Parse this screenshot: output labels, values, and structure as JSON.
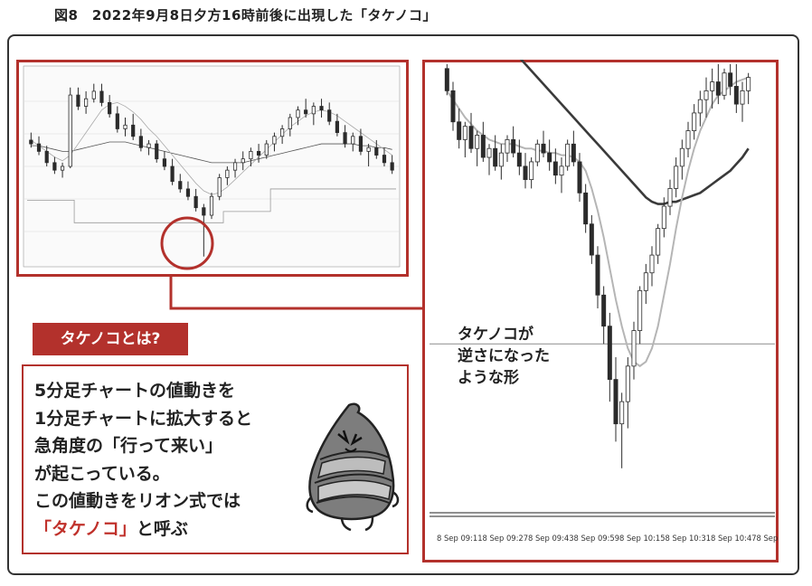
{
  "figure_title": "図8　2022年9月8日夕方16時前後に出現した「タケノコ」",
  "tag_label": "タケノコとは?",
  "explanation": {
    "line1": "5分足チャートの値動きを",
    "line2": "1分足チャートに拡大すると",
    "line3": "急角度の「行って来い」",
    "line4": "が起こっている。",
    "line5": "この値動きをリオン式では",
    "line6_highlight": "「タケノコ」",
    "line6_rest": "と呼ぶ"
  },
  "annotation": {
    "line1": "タケノコが",
    "line2": "逆さになった",
    "line3": "ような形"
  },
  "colors": {
    "accent": "#b3312c",
    "candle_up": "#ffffff",
    "candle_down": "#2b2b2b",
    "ma_light": "#b5b5b5",
    "ma_dark": "#3a3a3a"
  },
  "icons": {
    "mascot": "bamboo-shoot-mascot-icon"
  },
  "chart_data": [
    {
      "type": "candlestick",
      "name": "overview",
      "series": [
        {
          "o": 58,
          "h": 62,
          "l": 54,
          "c": 56
        },
        {
          "o": 56,
          "h": 60,
          "l": 50,
          "c": 52
        },
        {
          "o": 52,
          "h": 55,
          "l": 44,
          "c": 46
        },
        {
          "o": 46,
          "h": 49,
          "l": 40,
          "c": 42
        },
        {
          "o": 42,
          "h": 46,
          "l": 38,
          "c": 44
        },
        {
          "o": 44,
          "h": 86,
          "l": 43,
          "c": 82
        },
        {
          "o": 82,
          "h": 86,
          "l": 74,
          "c": 76
        },
        {
          "o": 76,
          "h": 84,
          "l": 72,
          "c": 80
        },
        {
          "o": 80,
          "h": 88,
          "l": 78,
          "c": 84
        },
        {
          "o": 84,
          "h": 88,
          "l": 76,
          "c": 78
        },
        {
          "o": 78,
          "h": 82,
          "l": 70,
          "c": 72
        },
        {
          "o": 72,
          "h": 76,
          "l": 62,
          "c": 64
        },
        {
          "o": 64,
          "h": 70,
          "l": 60,
          "c": 66
        },
        {
          "o": 66,
          "h": 72,
          "l": 58,
          "c": 60
        },
        {
          "o": 60,
          "h": 64,
          "l": 52,
          "c": 54
        },
        {
          "o": 54,
          "h": 58,
          "l": 50,
          "c": 56
        },
        {
          "o": 56,
          "h": 58,
          "l": 46,
          "c": 48
        },
        {
          "o": 48,
          "h": 52,
          "l": 42,
          "c": 44
        },
        {
          "o": 44,
          "h": 48,
          "l": 34,
          "c": 36
        },
        {
          "o": 36,
          "h": 40,
          "l": 30,
          "c": 32
        },
        {
          "o": 32,
          "h": 36,
          "l": 26,
          "c": 28
        },
        {
          "o": 28,
          "h": 32,
          "l": 20,
          "c": 22
        },
        {
          "o": 22,
          "h": 24,
          "l": -4,
          "c": 18
        },
        {
          "o": 18,
          "h": 30,
          "l": 16,
          "c": 28
        },
        {
          "o": 28,
          "h": 40,
          "l": 26,
          "c": 38
        },
        {
          "o": 38,
          "h": 44,
          "l": 34,
          "c": 42
        },
        {
          "o": 42,
          "h": 48,
          "l": 38,
          "c": 46
        },
        {
          "o": 46,
          "h": 52,
          "l": 42,
          "c": 48
        },
        {
          "o": 48,
          "h": 54,
          "l": 44,
          "c": 52
        },
        {
          "o": 52,
          "h": 56,
          "l": 46,
          "c": 50
        },
        {
          "o": 50,
          "h": 58,
          "l": 48,
          "c": 56
        },
        {
          "o": 56,
          "h": 62,
          "l": 52,
          "c": 60
        },
        {
          "o": 60,
          "h": 66,
          "l": 56,
          "c": 64
        },
        {
          "o": 64,
          "h": 72,
          "l": 60,
          "c": 70
        },
        {
          "o": 70,
          "h": 76,
          "l": 66,
          "c": 74
        },
        {
          "o": 74,
          "h": 80,
          "l": 70,
          "c": 72
        },
        {
          "o": 72,
          "h": 78,
          "l": 66,
          "c": 76
        },
        {
          "o": 76,
          "h": 80,
          "l": 70,
          "c": 74
        },
        {
          "o": 74,
          "h": 78,
          "l": 66,
          "c": 68
        },
        {
          "o": 68,
          "h": 72,
          "l": 60,
          "c": 62
        },
        {
          "o": 62,
          "h": 66,
          "l": 54,
          "c": 56
        },
        {
          "o": 56,
          "h": 62,
          "l": 52,
          "c": 60
        },
        {
          "o": 60,
          "h": 64,
          "l": 50,
          "c": 52
        },
        {
          "o": 52,
          "h": 56,
          "l": 44,
          "c": 54
        },
        {
          "o": 54,
          "h": 58,
          "l": 48,
          "c": 50
        },
        {
          "o": 50,
          "h": 54,
          "l": 44,
          "c": 46
        },
        {
          "o": 46,
          "h": 50,
          "l": 40,
          "c": 42
        }
      ],
      "ma_fast": [
        58,
        55,
        52,
        49,
        47,
        50,
        56,
        62,
        68,
        74,
        77,
        78,
        76,
        73,
        69,
        64,
        60,
        55,
        50,
        45,
        40,
        35,
        31,
        29,
        30,
        33,
        37,
        41,
        45,
        49,
        53,
        57,
        61,
        65,
        68,
        71,
        73,
        74,
        73,
        71,
        68,
        65,
        62,
        59,
        56,
        53,
        50
      ],
      "ma_slow": [
        55,
        55,
        54,
        53,
        52,
        52,
        53,
        54,
        55,
        56,
        57,
        57,
        57,
        56,
        55,
        54,
        53,
        52,
        51,
        50,
        49,
        48,
        47,
        46,
        46,
        46,
        46,
        46,
        47,
        48,
        49,
        50,
        51,
        52,
        53,
        54,
        55,
        56,
        56,
        56,
        56,
        56,
        55,
        55,
        54,
        54,
        53
      ],
      "band_low": [
        26,
        26,
        26,
        26,
        26,
        26,
        14,
        14,
        14,
        14,
        14,
        14,
        14,
        14,
        14,
        14,
        14,
        14,
        14,
        14,
        14,
        14,
        14,
        14,
        14,
        20,
        20,
        20,
        20,
        20,
        20,
        32,
        32,
        32,
        32,
        32,
        32,
        32,
        32,
        32,
        32,
        32,
        32,
        32,
        32,
        32,
        32
      ],
      "ylim": [
        -8,
        96
      ]
    },
    {
      "type": "candlestick",
      "name": "1-minute zoom",
      "x_ticks": [
        "8 Sep 09:11",
        "8 Sep 09:27",
        "8 Sep 09:43",
        "8 Sep 09:59",
        "8 Sep 10:15",
        "8 Sep 10:31",
        "8 Sep 10:47",
        "8 Sep"
      ],
      "series": [
        {
          "o": 110,
          "h": 112,
          "l": 98,
          "c": 100
        },
        {
          "o": 100,
          "h": 104,
          "l": 82,
          "c": 86
        },
        {
          "o": 86,
          "h": 92,
          "l": 74,
          "c": 78
        },
        {
          "o": 78,
          "h": 86,
          "l": 70,
          "c": 84
        },
        {
          "o": 84,
          "h": 90,
          "l": 72,
          "c": 74
        },
        {
          "o": 74,
          "h": 82,
          "l": 66,
          "c": 80
        },
        {
          "o": 80,
          "h": 86,
          "l": 68,
          "c": 70
        },
        {
          "o": 70,
          "h": 76,
          "l": 62,
          "c": 74
        },
        {
          "o": 74,
          "h": 80,
          "l": 64,
          "c": 66
        },
        {
          "o": 66,
          "h": 76,
          "l": 60,
          "c": 72
        },
        {
          "o": 72,
          "h": 80,
          "l": 68,
          "c": 78
        },
        {
          "o": 78,
          "h": 84,
          "l": 70,
          "c": 72
        },
        {
          "o": 72,
          "h": 78,
          "l": 62,
          "c": 66
        },
        {
          "o": 66,
          "h": 72,
          "l": 56,
          "c": 60
        },
        {
          "o": 60,
          "h": 70,
          "l": 56,
          "c": 68
        },
        {
          "o": 68,
          "h": 78,
          "l": 66,
          "c": 76
        },
        {
          "o": 76,
          "h": 82,
          "l": 70,
          "c": 72
        },
        {
          "o": 72,
          "h": 78,
          "l": 64,
          "c": 68
        },
        {
          "o": 68,
          "h": 74,
          "l": 58,
          "c": 62
        },
        {
          "o": 62,
          "h": 70,
          "l": 54,
          "c": 66
        },
        {
          "o": 66,
          "h": 78,
          "l": 64,
          "c": 76
        },
        {
          "o": 76,
          "h": 82,
          "l": 66,
          "c": 68
        },
        {
          "o": 68,
          "h": 72,
          "l": 50,
          "c": 54
        },
        {
          "o": 54,
          "h": 58,
          "l": 36,
          "c": 40
        },
        {
          "o": 40,
          "h": 44,
          "l": 22,
          "c": 26
        },
        {
          "o": 26,
          "h": 30,
          "l": 2,
          "c": 8
        },
        {
          "o": 8,
          "h": 12,
          "l": -14,
          "c": -6
        },
        {
          "o": -6,
          "h": 0,
          "l": -40,
          "c": -30
        },
        {
          "o": -30,
          "h": -20,
          "l": -58,
          "c": -50
        },
        {
          "o": -50,
          "h": -36,
          "l": -70,
          "c": -40
        },
        {
          "o": -40,
          "h": -20,
          "l": -52,
          "c": -24
        },
        {
          "o": -24,
          "h": -4,
          "l": -30,
          "c": -8
        },
        {
          "o": -8,
          "h": 12,
          "l": -14,
          "c": 10
        },
        {
          "o": 10,
          "h": 22,
          "l": 4,
          "c": 18
        },
        {
          "o": 18,
          "h": 30,
          "l": 12,
          "c": 26
        },
        {
          "o": 26,
          "h": 40,
          "l": 22,
          "c": 38
        },
        {
          "o": 38,
          "h": 52,
          "l": 34,
          "c": 48
        },
        {
          "o": 48,
          "h": 60,
          "l": 44,
          "c": 56
        },
        {
          "o": 56,
          "h": 70,
          "l": 52,
          "c": 66
        },
        {
          "o": 66,
          "h": 78,
          "l": 60,
          "c": 74
        },
        {
          "o": 74,
          "h": 86,
          "l": 70,
          "c": 82
        },
        {
          "o": 82,
          "h": 94,
          "l": 78,
          "c": 90
        },
        {
          "o": 90,
          "h": 100,
          "l": 84,
          "c": 96
        },
        {
          "o": 96,
          "h": 106,
          "l": 88,
          "c": 100
        },
        {
          "o": 100,
          "h": 110,
          "l": 92,
          "c": 104
        },
        {
          "o": 104,
          "h": 112,
          "l": 94,
          "c": 98
        },
        {
          "o": 98,
          "h": 110,
          "l": 96,
          "c": 108
        },
        {
          "o": 108,
          "h": 112,
          "l": 98,
          "c": 102
        },
        {
          "o": 102,
          "h": 112,
          "l": 90,
          "c": 94
        },
        {
          "o": 94,
          "h": 104,
          "l": 86,
          "c": 100
        },
        {
          "o": 100,
          "h": 108,
          "l": 94,
          "c": 106
        }
      ],
      "ma_light": [
        100,
        96,
        92,
        88,
        85,
        82,
        80,
        78,
        77,
        76,
        76,
        76,
        75,
        74,
        74,
        73,
        73,
        72,
        72,
        71,
        71,
        70,
        68,
        64,
        56,
        46,
        34,
        20,
        6,
        -6,
        -16,
        -22,
        -24,
        -22,
        -16,
        -6,
        8,
        22,
        38,
        52,
        64,
        74,
        82,
        88,
        94,
        98,
        100,
        102,
        104,
        105,
        106
      ],
      "ma_dark": [
        150,
        148,
        145,
        142,
        139,
        136,
        133,
        130,
        127,
        124,
        121,
        118,
        115,
        112,
        109,
        106,
        103,
        100,
        97,
        94,
        91,
        88,
        85,
        82,
        79,
        76,
        73,
        70,
        67,
        64,
        61,
        58,
        55,
        52,
        50,
        49,
        49,
        50,
        50,
        51,
        52,
        53,
        54,
        56,
        58,
        60,
        62,
        64,
        67,
        70,
        74
      ],
      "horizontal_lines": [
        -14
      ],
      "ylim": [
        -88,
        114
      ]
    }
  ]
}
